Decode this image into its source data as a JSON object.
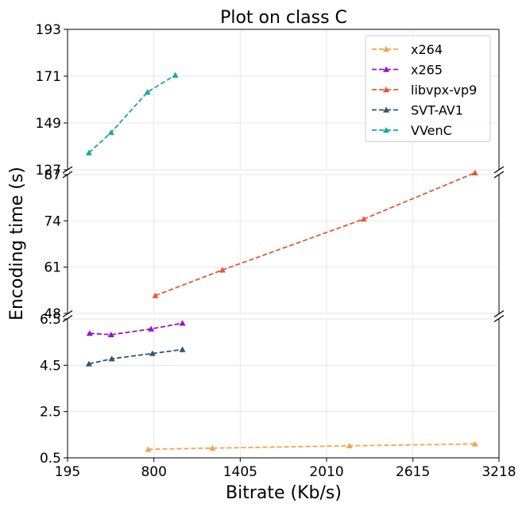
{
  "chart_data": {
    "type": "line",
    "title": "Plot on class C",
    "xlabel": "Bitrate (Kb/s)",
    "ylabel": "Encoding time (s)",
    "x_ticks": [
      "195",
      "800",
      "1405",
      "2010",
      "2615",
      "3218"
    ],
    "xlim": [
      195,
      3218
    ],
    "broken_y_axis": true,
    "y_panels": [
      {
        "range": [
          127,
          193
        ],
        "ticks": [
          "127",
          "149",
          "171",
          "193"
        ]
      },
      {
        "range": [
          48,
          87
        ],
        "ticks": [
          "48",
          "61",
          "74",
          "87"
        ]
      },
      {
        "range": [
          0.5,
          6.5
        ],
        "ticks": [
          "0.5",
          "2.5",
          "4.5",
          "6.5"
        ]
      }
    ],
    "grid": true,
    "legend_position": "top-right",
    "series": [
      {
        "name": "x264",
        "color": "#f5a54a",
        "marker": "triangle",
        "linestyle": "dashed",
        "x": [
          760,
          1210,
          2170,
          3050
        ],
        "y": [
          0.87,
          0.92,
          1.02,
          1.1
        ]
      },
      {
        "name": "x265",
        "color": "#9b10d0",
        "marker": "triangle",
        "linestyle": "dashed",
        "x": [
          350,
          500,
          780,
          1000
        ],
        "y": [
          5.88,
          5.82,
          6.07,
          6.32
        ]
      },
      {
        "name": "libvpx-vp9",
        "color": "#e5573a",
        "marker": "triangle",
        "linestyle": "dashed",
        "x": [
          810,
          1280,
          2270,
          3050
        ],
        "y": [
          53,
          60.2,
          74.5,
          87.5
        ]
      },
      {
        "name": "SVT-AV1",
        "color": "#2b5678",
        "marker": "triangle",
        "linestyle": "dashed",
        "x": [
          345,
          505,
          790,
          1000
        ],
        "y": [
          4.56,
          4.78,
          5.01,
          5.18
        ]
      },
      {
        "name": "VVenC",
        "color": "#18a6a6",
        "marker": "triangle",
        "linestyle": "dashed",
        "x": [
          345,
          500,
          755,
          950
        ],
        "y": [
          135,
          144.5,
          163.5,
          171.5
        ]
      }
    ]
  }
}
